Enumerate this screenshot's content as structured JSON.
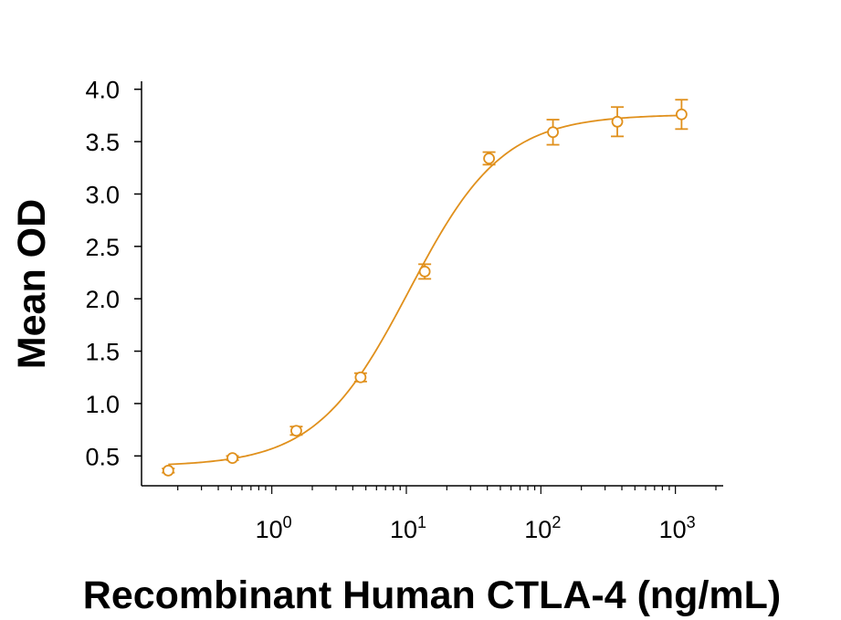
{
  "chart_data": {
    "type": "scatter",
    "xlabel": "Recombinant Human CTLA-4 (ng/mL)",
    "ylabel": "Mean OD",
    "x_scale": "log10",
    "xlim": [
      0.12,
      2000
    ],
    "ylim": [
      0.25,
      4.05
    ],
    "x_ticks": [
      {
        "value": 1,
        "base": "10",
        "exp": "0"
      },
      {
        "value": 10,
        "base": "10",
        "exp": "1"
      },
      {
        "value": 100,
        "base": "10",
        "exp": "2"
      },
      {
        "value": 1000,
        "base": "10",
        "exp": "3"
      }
    ],
    "y_ticks": [
      {
        "value": 0.5,
        "label": "0.5"
      },
      {
        "value": 1.0,
        "label": "1.0"
      },
      {
        "value": 1.5,
        "label": "1.5"
      },
      {
        "value": 2.0,
        "label": "2.0"
      },
      {
        "value": 2.5,
        "label": "2.5"
      },
      {
        "value": 3.0,
        "label": "3.0"
      },
      {
        "value": 3.5,
        "label": "3.5"
      },
      {
        "value": 4.0,
        "label": "4.0"
      }
    ],
    "color": "#e0901c",
    "points": [
      {
        "x": 0.17,
        "y": 0.36,
        "err": 0.02
      },
      {
        "x": 0.51,
        "y": 0.48,
        "err": 0.02
      },
      {
        "x": 1.52,
        "y": 0.74,
        "err": 0.04
      },
      {
        "x": 4.57,
        "y": 1.25,
        "err": 0.04
      },
      {
        "x": 13.7,
        "y": 2.26,
        "err": 0.07
      },
      {
        "x": 41.2,
        "y": 3.34,
        "err": 0.06
      },
      {
        "x": 123,
        "y": 3.59,
        "err": 0.12
      },
      {
        "x": 370,
        "y": 3.69,
        "err": 0.14
      },
      {
        "x": 1111,
        "y": 3.76,
        "err": 0.14
      }
    ],
    "curve": {
      "model": "4PL",
      "bottom": 0.4,
      "top": 3.76,
      "ec50": 10.5,
      "hill": 1.25
    }
  }
}
